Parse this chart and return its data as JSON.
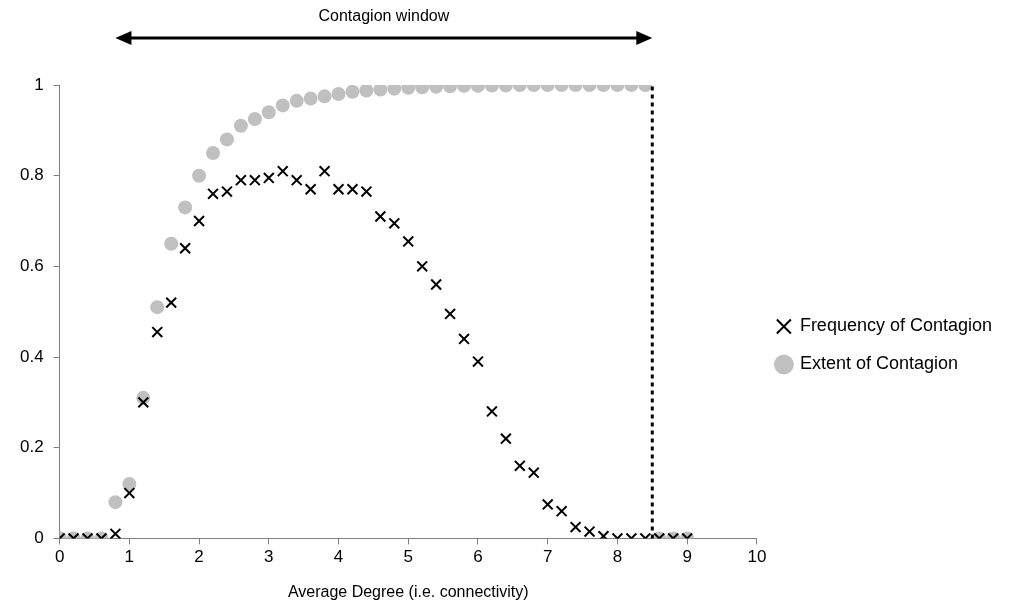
{
  "chart_data": {
    "type": "scatter",
    "xlabel": "Average Degree (i.e. connectivity)",
    "x": [
      0,
      0.2,
      0.4,
      0.6,
      0.8,
      1,
      1.2,
      1.4,
      1.6,
      1.8,
      2,
      2.2,
      2.4,
      2.6,
      2.8,
      3,
      3.2,
      3.4,
      3.6,
      3.8,
      4,
      4.2,
      4.4,
      4.6,
      4.8,
      5,
      5.2,
      5.4,
      5.6,
      5.8,
      6,
      6.2,
      6.4,
      6.6,
      6.8,
      7,
      7.2,
      7.4,
      7.6,
      7.8,
      8,
      8.2,
      8.4,
      8.6,
      8.8,
      9
    ],
    "series": [
      {
        "name": "Extent of Contagion",
        "color": "#c0c0c0",
        "marker": "circle",
        "values": [
          0,
          0,
          0,
          0,
          0.08,
          0.12,
          0.31,
          0.51,
          0.65,
          0.73,
          0.8,
          0.85,
          0.88,
          0.91,
          0.925,
          0.94,
          0.955,
          0.965,
          0.97,
          0.975,
          0.98,
          0.985,
          0.988,
          0.99,
          0.992,
          0.994,
          0.995,
          0.996,
          0.997,
          0.998,
          0.998,
          0.999,
          0.999,
          1,
          1,
          1,
          1,
          1,
          1,
          1,
          1,
          1,
          1,
          0,
          0,
          0
        ]
      },
      {
        "name": "Frequency of Contagion",
        "color": "#000000",
        "marker": "cross",
        "values": [
          0,
          0,
          0,
          0,
          0.01,
          0.1,
          0.3,
          0.455,
          0.52,
          0.64,
          0.7,
          0.76,
          0.765,
          0.79,
          0.79,
          0.795,
          0.81,
          0.79,
          0.77,
          0.81,
          0.77,
          0.77,
          0.765,
          0.71,
          0.695,
          0.655,
          0.6,
          0.56,
          0.495,
          0.44,
          0.39,
          0.28,
          0.22,
          0.16,
          0.145,
          0.075,
          0.06,
          0.025,
          0.015,
          0.005,
          0,
          0,
          0,
          0,
          0,
          0
        ]
      }
    ],
    "xlim": [
      0,
      10
    ],
    "xticks": [
      0,
      1,
      2,
      3,
      4,
      5,
      6,
      7,
      8,
      9,
      10
    ],
    "ylim": [
      0,
      1
    ],
    "yticks": [
      0,
      0.2,
      0.4,
      0.6,
      0.8,
      1
    ],
    "ref_lines": [
      {
        "axis": "x",
        "value": 8.5,
        "line_style": "dotted",
        "color": "#000000"
      }
    ],
    "annotations": [
      "Contagion window"
    ],
    "grid": false,
    "legend": "right"
  }
}
